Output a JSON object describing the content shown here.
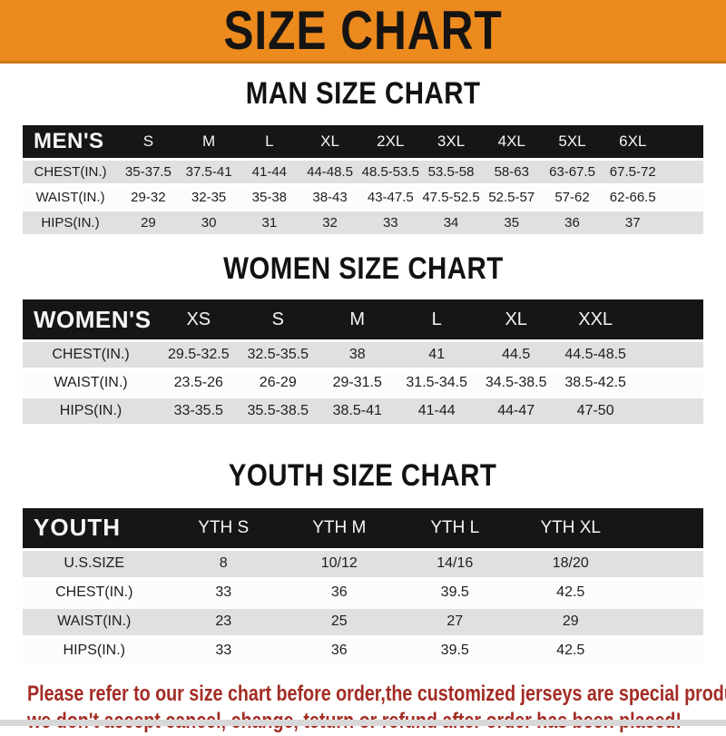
{
  "banner": {
    "title": "SIZE CHART"
  },
  "sections": [
    {
      "title": "MAN SIZE CHART",
      "table": {
        "header_label": "MEN'S",
        "columns": [
          "S",
          "M",
          "L",
          "XL",
          "2XL",
          "3XL",
          "4XL",
          "5XL",
          "6XL"
        ],
        "rows": [
          {
            "label": "CHEST(IN.)",
            "values": [
              "35-37.5",
              "37.5-41",
              "41-44",
              "44-48.5",
              "48.5-53.5",
              "53.5-58",
              "58-63",
              "63-67.5",
              "67.5-72"
            ]
          },
          {
            "label": "WAIST(IN.)",
            "values": [
              "29-32",
              "32-35",
              "35-38",
              "38-43",
              "43-47.5",
              "47.5-52.5",
              "52.5-57",
              "57-62",
              "62-66.5"
            ]
          },
          {
            "label": "HIPS(IN.)",
            "values": [
              "29",
              "30",
              "31",
              "32",
              "33",
              "34",
              "35",
              "36",
              "37"
            ]
          }
        ]
      }
    },
    {
      "title": "WOMEN SIZE CHART",
      "table": {
        "header_label": "WOMEN'S",
        "columns": [
          "XS",
          "S",
          "M",
          "L",
          "XL",
          "XXL"
        ],
        "rows": [
          {
            "label": "CHEST(IN.)",
            "values": [
              "29.5-32.5",
              "32.5-35.5",
              "38",
              "41",
              "44.5",
              "44.5-48.5"
            ]
          },
          {
            "label": "WAIST(IN.)",
            "values": [
              "23.5-26",
              "26-29",
              "29-31.5",
              "31.5-34.5",
              "34.5-38.5",
              "38.5-42.5"
            ]
          },
          {
            "label": "HIPS(IN.)",
            "values": [
              "33-35.5",
              "35.5-38.5",
              "38.5-41",
              "41-44",
              "44-47",
              "47-50"
            ]
          }
        ]
      }
    },
    {
      "title": "YOUTH SIZE CHART",
      "table": {
        "header_label": "YOUTH",
        "columns": [
          "YTH S",
          "YTH M",
          "YTH L",
          "YTH XL"
        ],
        "rows": [
          {
            "label": "U.S.SIZE",
            "values": [
              "8",
              "10/12",
              "14/16",
              "18/20"
            ]
          },
          {
            "label": "CHEST(IN.)",
            "values": [
              "33",
              "36",
              "39.5",
              "42.5"
            ]
          },
          {
            "label": "WAIST(IN.)",
            "values": [
              "23",
              "25",
              "27",
              "29"
            ]
          },
          {
            "label": "HIPS(IN.)",
            "values": [
              "33",
              "36",
              "39.5",
              "42.5"
            ]
          }
        ]
      }
    }
  ],
  "footer": {
    "line1": "Please refer to our size chart before order,the customized jerseys are special products,",
    "line2": "we don't accept cancel, change, teturn or refund after order has been placed!"
  },
  "colors": {
    "banner_orange": "#EC8A1E",
    "banner_border": "#C97815",
    "bar_black": "#161616",
    "row_gray": "#E0E0E0",
    "footer_red": "#A32C24"
  }
}
